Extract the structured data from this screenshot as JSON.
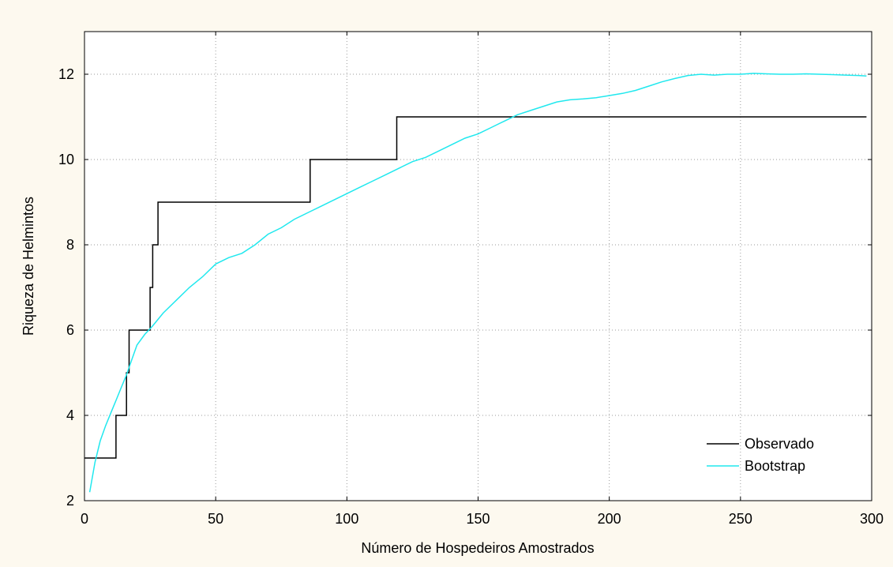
{
  "colors": {
    "background": "#fdf9ef",
    "plot_background": "#ffffff",
    "grid": "#9a9a9a",
    "axis": "#000000"
  },
  "chart_data": {
    "type": "line",
    "title": "",
    "xlabel": "Número de Hospedeiros Amostrados",
    "ylabel": "Riqueza de Helmintos",
    "xlim": [
      0,
      300
    ],
    "ylim": [
      2,
      13
    ],
    "xticks": [
      0,
      50,
      100,
      150,
      200,
      250,
      300
    ],
    "yticks": [
      2,
      4,
      6,
      8,
      10,
      12
    ],
    "grid": true,
    "legend_position": "bottom-right",
    "series": [
      {
        "name": "Observado",
        "color": "#000000",
        "style": "step",
        "points": [
          [
            0,
            3
          ],
          [
            12,
            3
          ],
          [
            12,
            4
          ],
          [
            16,
            4
          ],
          [
            16,
            5
          ],
          [
            17,
            5
          ],
          [
            17,
            6
          ],
          [
            25,
            6
          ],
          [
            25,
            7
          ],
          [
            26,
            7
          ],
          [
            26,
            8
          ],
          [
            28,
            8
          ],
          [
            28,
            9
          ],
          [
            86,
            9
          ],
          [
            86,
            10
          ],
          [
            119,
            10
          ],
          [
            119,
            11
          ],
          [
            298,
            11
          ]
        ]
      },
      {
        "name": "Bootstrap",
        "color": "#20e8ee",
        "style": "line",
        "points": [
          [
            2,
            2.2
          ],
          [
            4,
            2.9
          ],
          [
            6,
            3.4
          ],
          [
            8,
            3.75
          ],
          [
            10,
            4.05
          ],
          [
            12,
            4.35
          ],
          [
            14,
            4.65
          ],
          [
            16,
            4.95
          ],
          [
            18,
            5.3
          ],
          [
            20,
            5.65
          ],
          [
            23,
            5.9
          ],
          [
            26,
            6.1
          ],
          [
            30,
            6.4
          ],
          [
            35,
            6.7
          ],
          [
            40,
            7.0
          ],
          [
            45,
            7.25
          ],
          [
            50,
            7.55
          ],
          [
            55,
            7.7
          ],
          [
            60,
            7.8
          ],
          [
            65,
            8.0
          ],
          [
            70,
            8.25
          ],
          [
            75,
            8.4
          ],
          [
            80,
            8.6
          ],
          [
            85,
            8.75
          ],
          [
            90,
            8.9
          ],
          [
            95,
            9.05
          ],
          [
            100,
            9.2
          ],
          [
            105,
            9.35
          ],
          [
            110,
            9.5
          ],
          [
            115,
            9.65
          ],
          [
            120,
            9.8
          ],
          [
            125,
            9.95
          ],
          [
            130,
            10.05
          ],
          [
            135,
            10.2
          ],
          [
            140,
            10.35
          ],
          [
            145,
            10.5
          ],
          [
            150,
            10.6
          ],
          [
            155,
            10.75
          ],
          [
            160,
            10.9
          ],
          [
            165,
            11.05
          ],
          [
            170,
            11.15
          ],
          [
            175,
            11.25
          ],
          [
            180,
            11.35
          ],
          [
            185,
            11.4
          ],
          [
            190,
            11.42
          ],
          [
            195,
            11.45
          ],
          [
            200,
            11.5
          ],
          [
            205,
            11.55
          ],
          [
            210,
            11.62
          ],
          [
            215,
            11.72
          ],
          [
            220,
            11.82
          ],
          [
            225,
            11.9
          ],
          [
            230,
            11.97
          ],
          [
            235,
            12.0
          ],
          [
            240,
            11.98
          ],
          [
            245,
            12.0
          ],
          [
            250,
            12.0
          ],
          [
            255,
            12.02
          ],
          [
            260,
            12.01
          ],
          [
            265,
            12.0
          ],
          [
            270,
            12.0
          ],
          [
            275,
            12.01
          ],
          [
            280,
            12.0
          ],
          [
            285,
            11.99
          ],
          [
            290,
            11.98
          ],
          [
            295,
            11.97
          ],
          [
            298,
            11.96
          ]
        ]
      }
    ]
  }
}
